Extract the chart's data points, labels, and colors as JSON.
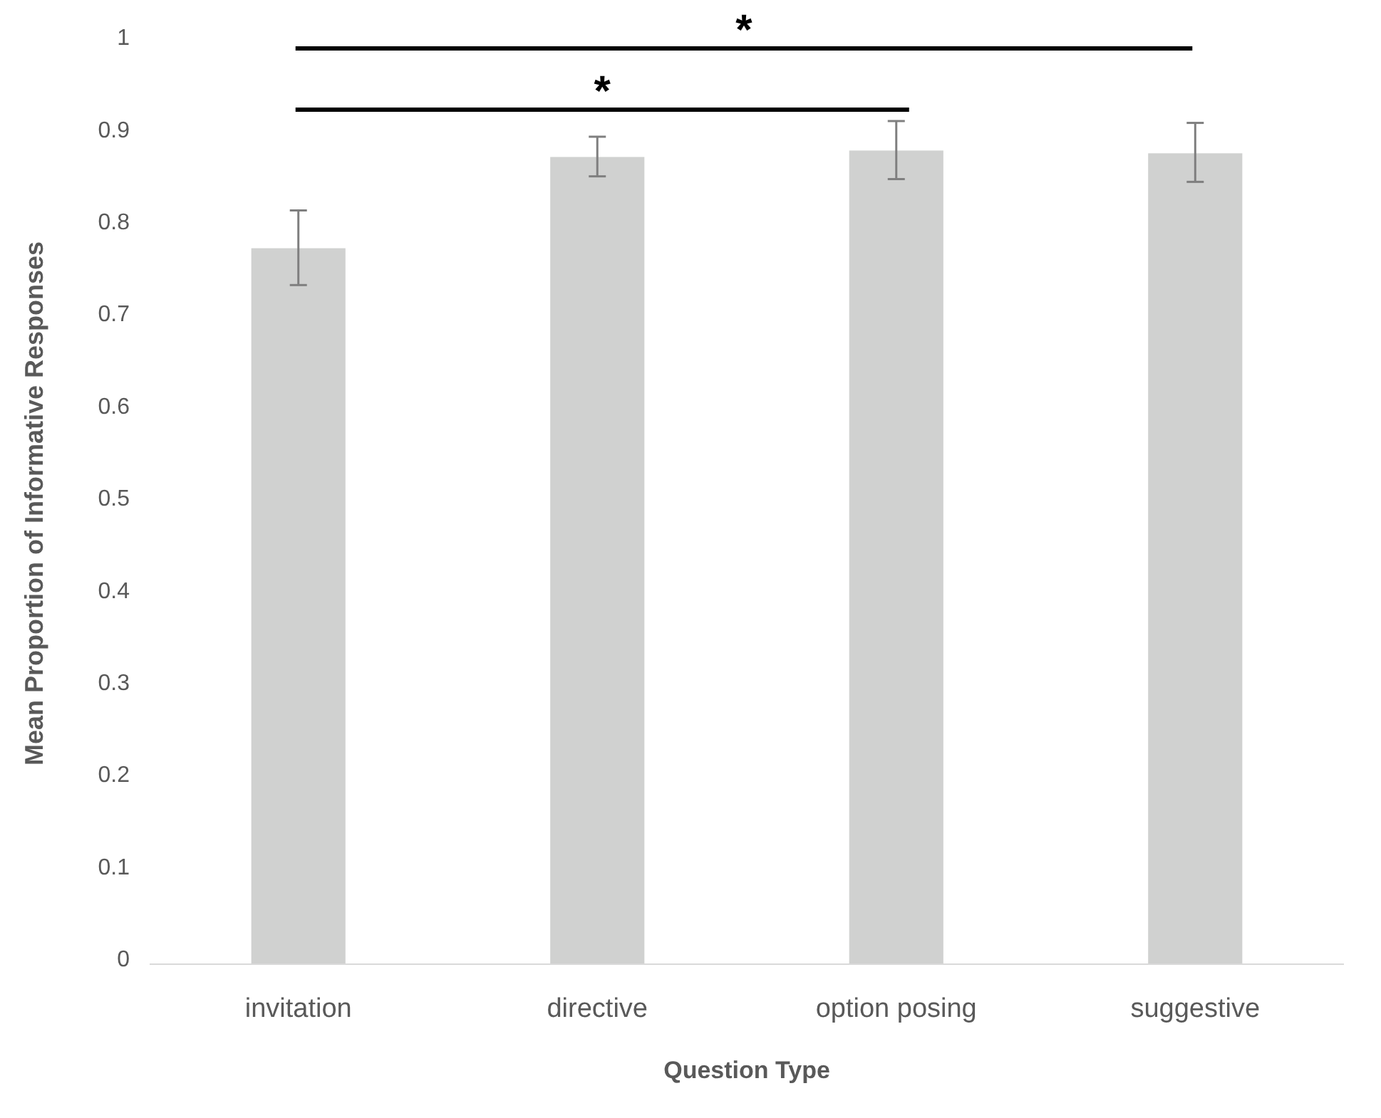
{
  "chart_data": {
    "type": "bar",
    "xlabel": "Question Type",
    "ylabel": "Mean Proportion of Informative Responses",
    "categories": [
      "invitation",
      "directive",
      "option posing",
      "suggestive"
    ],
    "values": [
      0.777,
      0.876,
      0.883,
      0.88
    ],
    "errors": [
      [
        0.737,
        0.818
      ],
      [
        0.855,
        0.898
      ],
      [
        0.852,
        0.915
      ],
      [
        0.849,
        0.913
      ]
    ],
    "color": "#d0d1d0",
    "ylim": [
      0,
      1
    ],
    "yticks": [
      0,
      0.1,
      0.2,
      0.3,
      0.4,
      0.5,
      0.6,
      0.7,
      0.8,
      0.9,
      1
    ],
    "grid": false,
    "annotations": [
      "*",
      "*"
    ]
  }
}
